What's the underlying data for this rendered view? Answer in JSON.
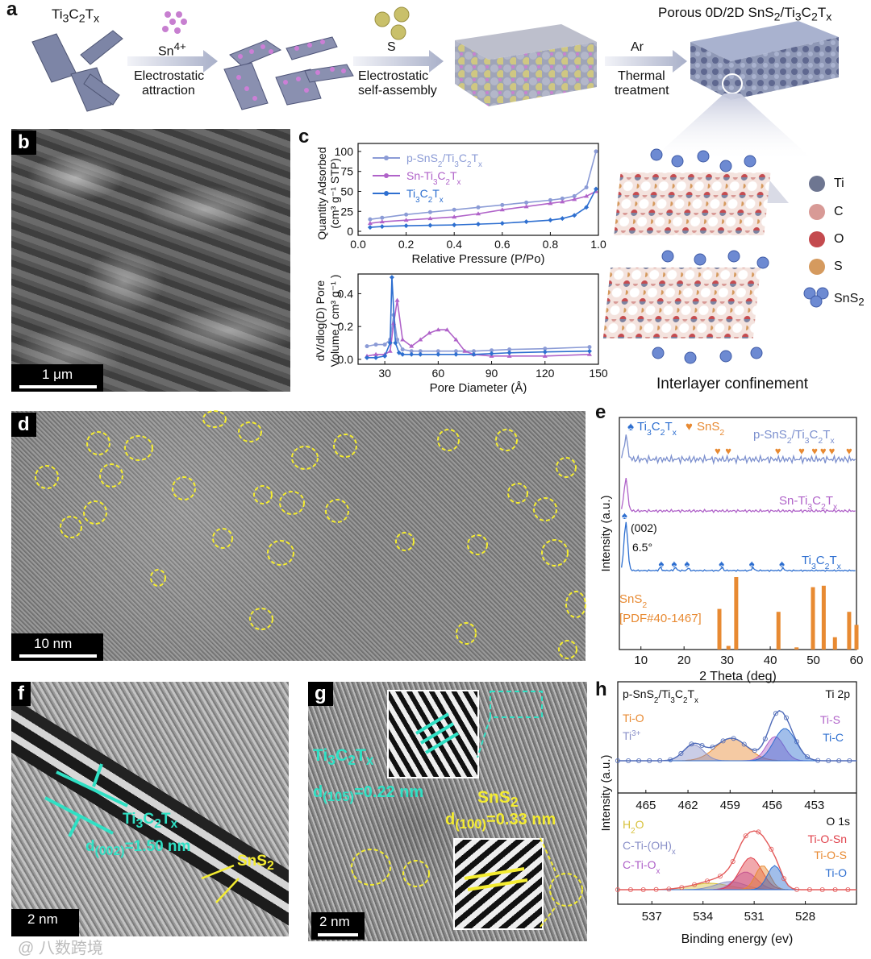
{
  "panel_labels": [
    "a",
    "b",
    "c",
    "d",
    "e",
    "f",
    "g",
    "h"
  ],
  "panel_a": {
    "start": "Ti3C2Tx",
    "step1_reagent": "Sn4+",
    "step1_label_1": "Electrostatic",
    "step1_label_2": "attraction",
    "step2_reagent": "S",
    "step2_label_1": "Electrostatic",
    "step2_label_2": "self-assembly",
    "step3_reagent": "Ar",
    "step3_label_1": "Thermal",
    "step3_label_2": "treatment",
    "product": "Porous 0D/2D SnS2/Ti3C2Tx",
    "confinement_title": "Interlayer confinement",
    "legend": [
      {
        "label": "Ti",
        "color": "#6e7691"
      },
      {
        "label": "C",
        "color": "#d89a96"
      },
      {
        "label": "O",
        "color": "#c44a4e"
      },
      {
        "label": "S",
        "color": "#d59a5e"
      },
      {
        "label": "SnS2",
        "color": "#6d8ad2"
      }
    ]
  },
  "panel_b": {
    "scale": "1 μm"
  },
  "panel_d": {
    "scale": "10 nm"
  },
  "panel_f": {
    "scale": "2 nm",
    "label_phase": "Ti3C2Tx",
    "d_spacing": "d(002)=1.50 nm",
    "label_sns2": "SnS2"
  },
  "panel_g": {
    "scale": "2 nm",
    "label_phase": "Ti3C2Tx",
    "d_spacing_1": "d(105)=0.22 nm",
    "label_sns2": "SnS2",
    "d_spacing_2": "d(100)=0.33 nm"
  },
  "chart_data": [
    {
      "id": "c-top",
      "type": "line",
      "xlabel": "Relative Pressure (P/Po)",
      "ylabel": "Quantity Adsorbed (cm3 g-1 STP)",
      "xlim": [
        0.0,
        1.0
      ],
      "ylim": [
        -5,
        110
      ],
      "xticks": [
        "0.0",
        "0.2",
        "0.4",
        "0.6",
        "0.8",
        "1.0"
      ],
      "yticks": [
        "0",
        "25",
        "50",
        "75",
        "100"
      ],
      "series": [
        {
          "name": "p-SnS2/Ti3C2Tx",
          "color": "#8b9bd6",
          "x": [
            0.05,
            0.1,
            0.2,
            0.3,
            0.4,
            0.5,
            0.6,
            0.7,
            0.8,
            0.85,
            0.9,
            0.95,
            0.99
          ],
          "y": [
            15,
            17,
            21,
            24,
            27,
            30,
            33,
            36,
            39,
            41,
            44,
            55,
            100
          ]
        },
        {
          "name": "Sn-Ti3C2Tx",
          "color": "#b063c9",
          "x": [
            0.05,
            0.1,
            0.2,
            0.3,
            0.4,
            0.5,
            0.6,
            0.7,
            0.8,
            0.85,
            0.9,
            0.95,
            0.99
          ],
          "y": [
            10,
            12,
            14,
            16,
            18,
            22,
            27,
            31,
            35,
            37,
            40,
            44,
            50
          ]
        },
        {
          "name": "Ti3C2Tx",
          "color": "#2e6fd0",
          "x": [
            0.05,
            0.1,
            0.2,
            0.3,
            0.4,
            0.5,
            0.6,
            0.7,
            0.8,
            0.85,
            0.9,
            0.95,
            0.99
          ],
          "y": [
            5,
            6,
            7,
            7.5,
            8,
            9,
            10,
            12,
            14,
            16,
            20,
            30,
            53
          ]
        }
      ]
    },
    {
      "id": "c-bottom",
      "type": "line",
      "xlabel": "Pore Diameter (Å)",
      "ylabel": "dV/dlog(D) Pore Volume ( cm3 g-1 )",
      "xlim": [
        15,
        150
      ],
      "ylim": [
        -0.03,
        0.52
      ],
      "xticks": [
        "30",
        "60",
        "90",
        "120",
        "150"
      ],
      "yticks": [
        "0.0",
        "0.2",
        "0.4"
      ],
      "series": [
        {
          "name": "p-SnS2/Ti3C2Tx",
          "color": "#8b9bd6",
          "x": [
            20,
            25,
            30,
            33,
            35,
            37,
            40,
            45,
            50,
            60,
            70,
            80,
            90,
            100,
            120,
            145
          ],
          "y": [
            0.08,
            0.09,
            0.09,
            0.12,
            0.27,
            0.12,
            0.06,
            0.05,
            0.05,
            0.05,
            0.05,
            0.05,
            0.055,
            0.06,
            0.065,
            0.075
          ]
        },
        {
          "name": "Sn-Ti3C2Tx",
          "color": "#b063c9",
          "x": [
            20,
            25,
            30,
            33,
            35,
            37,
            40,
            45,
            50,
            55,
            60,
            65,
            70,
            75,
            80,
            90,
            100,
            120,
            145
          ],
          "y": [
            0.02,
            0.03,
            0.03,
            0.05,
            0.22,
            0.36,
            0.12,
            0.08,
            0.12,
            0.16,
            0.18,
            0.18,
            0.12,
            0.05,
            0.03,
            0.02,
            0.02,
            0.02,
            0.03
          ]
        },
        {
          "name": "Ti3C2Tx",
          "color": "#2e6fd0",
          "x": [
            20,
            25,
            30,
            33,
            34,
            36,
            38,
            40,
            45,
            50,
            60,
            70,
            80,
            90,
            100,
            120,
            145
          ],
          "y": [
            0.01,
            0.01,
            0.02,
            0.1,
            0.5,
            0.1,
            0.04,
            0.03,
            0.03,
            0.03,
            0.03,
            0.03,
            0.03,
            0.035,
            0.04,
            0.045,
            0.05
          ]
        }
      ]
    },
    {
      "id": "e",
      "type": "line",
      "xlabel": "2 Theta (deg)",
      "ylabel": "Intensity (a.u.)",
      "xlim": [
        5,
        60
      ],
      "xticks": [
        "10",
        "20",
        "30",
        "40",
        "50",
        "60"
      ],
      "legend": [
        "Ti3C2Tx",
        "SnS2"
      ],
      "traces": [
        {
          "name": "p-SnS2/Ti3C2Tx",
          "color": "#7b8fce"
        },
        {
          "name": "Sn-Ti3C2Tx",
          "color": "#b063c9"
        },
        {
          "name": "Ti3C2Tx",
          "color": "#2e6fd0"
        }
      ],
      "annotations": [
        "(002)",
        "6.5°"
      ],
      "reference": {
        "name": "SnS2",
        "card": "[PDF#40-1467]",
        "color": "#e88a32",
        "positions": [
          28.2,
          30.3,
          32.1,
          41.9,
          46.1,
          49.9,
          52.4,
          55.0,
          58.3,
          60.0
        ],
        "intensities": [
          0.56,
          0.05,
          1.0,
          0.52,
          0.03,
          0.86,
          0.88,
          0.17,
          0.52,
          0.34
        ]
      }
    },
    {
      "id": "h-top",
      "type": "area",
      "title": "p-SnS2/Ti3C2Tx",
      "region": "Ti 2p",
      "xlabel": "Binding energy (ev)",
      "ylabel": "Intensity (a.u.)",
      "xlim": [
        467,
        450
      ],
      "xticks": [
        "465",
        "462",
        "459",
        "456",
        "453"
      ],
      "components": [
        {
          "name": "Ti-O",
          "color": "#e88a32",
          "center": 458.9
        },
        {
          "name": "Ti3+",
          "color": "#8a90c8",
          "center": 461.6
        },
        {
          "name": "Ti-S",
          "color": "#b063c9",
          "center": 455.8
        },
        {
          "name": "Ti-C",
          "color": "#2e6fd0",
          "center": 455.1
        }
      ]
    },
    {
      "id": "h-bottom",
      "type": "area",
      "region": "O 1s",
      "xlabel": "Binding energy (ev)",
      "xlim": [
        539,
        525
      ],
      "xticks": [
        "537",
        "534",
        "531",
        "528"
      ],
      "components": [
        {
          "name": "H2O",
          "color": "#d8c23c",
          "center": 533.6
        },
        {
          "name": "C-Ti-(OH)x",
          "color": "#8a90c8",
          "center": 532.4
        },
        {
          "name": "C-Ti-Ox",
          "color": "#b063c9",
          "center": 531.5
        },
        {
          "name": "Ti-O-Sn",
          "color": "#e0404a",
          "center": 531.2
        },
        {
          "name": "Ti-O-S",
          "color": "#e88a32",
          "center": 530.5
        },
        {
          "name": "Ti-O",
          "color": "#2e6fd0",
          "center": 529.8
        }
      ]
    }
  ],
  "watermark": "@ 八数跨境"
}
